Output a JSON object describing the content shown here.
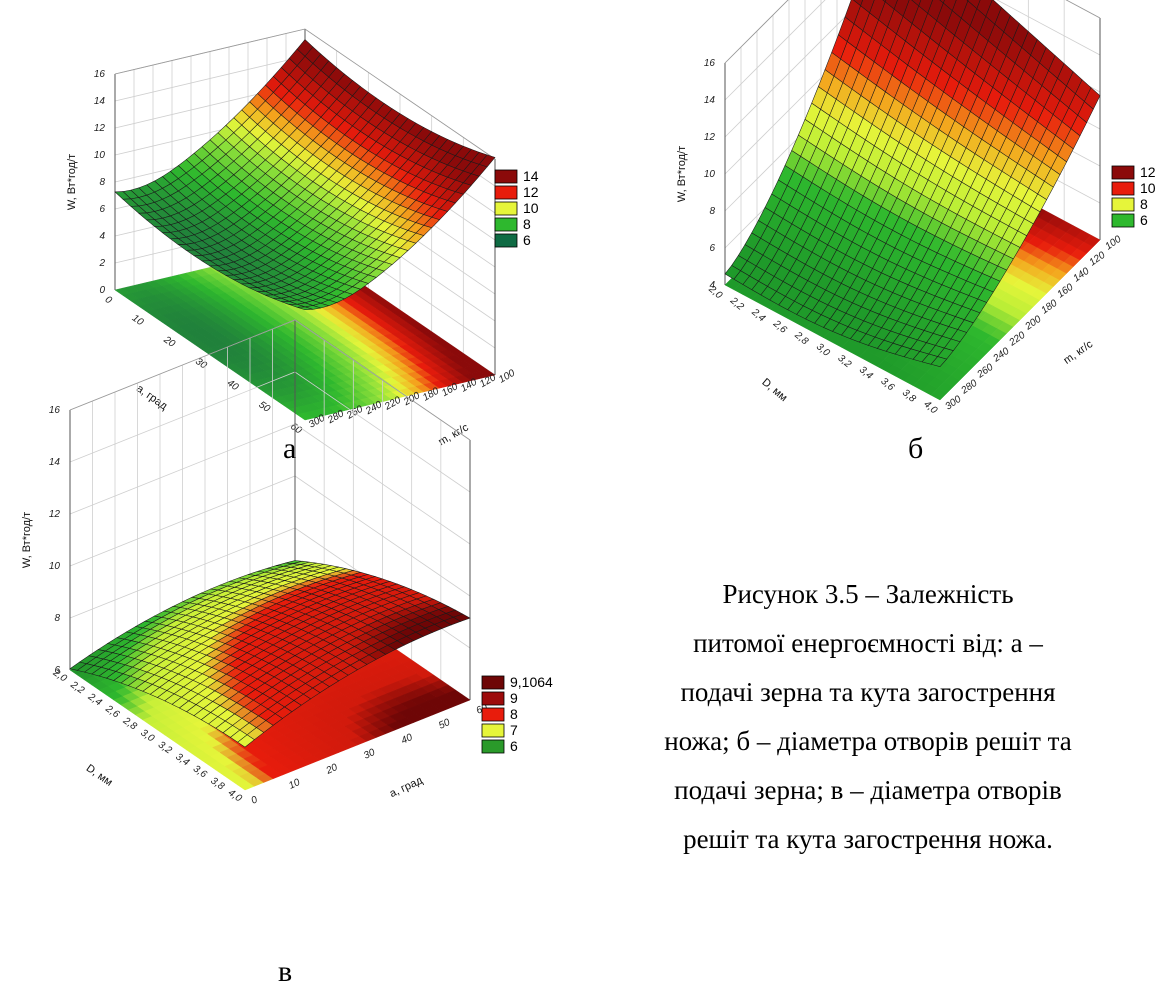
{
  "caption": {
    "line1": "Рисунок 3.5 – Залежність",
    "line2": "питомої енергоємності від: а –",
    "line3": "подачі зерна та кута загострення",
    "line4": "ножа; б – діаметра отворів решіт та",
    "line5": "подачі зерна; в – діаметра отворів",
    "line6": "решіт та кута загострення ножа."
  },
  "chart_data": [
    {
      "type": "surface",
      "panel_label": "а",
      "zlabel": "W, Вт*год/т",
      "xlabel": "a, град",
      "ylabel": "m, кг/с",
      "z_ticks": [
        "0",
        "2",
        "4",
        "6",
        "8",
        "10",
        "12",
        "14",
        "16"
      ],
      "x_ticks": [
        "0",
        "10",
        "20",
        "30",
        "40",
        "50",
        "60"
      ],
      "y_ticks": [
        "100",
        "120",
        "140",
        "160",
        "180",
        "200",
        "220",
        "240",
        "260",
        "280",
        "300"
      ],
      "zlim": [
        0,
        16
      ],
      "surface_corners": {
        "a0_m300": 7.5,
        "a60_m300": 6.8,
        "a0_m100": 14.5,
        "a60_m100": 14.2,
        "min_a25_m270": 5.9
      },
      "legend": [
        {
          "label": "14",
          "color": "#8b0a0a"
        },
        {
          "label": "12",
          "color": "#e81c0c"
        },
        {
          "label": "10",
          "color": "#e6f53a"
        },
        {
          "label": "8",
          "color": "#2eb82e"
        },
        {
          "label": "6",
          "color": "#0f6b44"
        }
      ]
    },
    {
      "type": "surface",
      "panel_label": "б",
      "zlabel": "W, Вт*год/т",
      "xlabel": "D, мм",
      "ylabel": "m, кг/с",
      "z_ticks": [
        "4",
        "6",
        "8",
        "10",
        "12",
        "14",
        "16"
      ],
      "x_ticks": [
        "2,0",
        "2,2",
        "2,4",
        "2,6",
        "2,8",
        "3,0",
        "3,2",
        "3,4",
        "3,6",
        "3,8",
        "4,0"
      ],
      "y_ticks": [
        "100",
        "120",
        "140",
        "160",
        "180",
        "200",
        "220",
        "240",
        "260",
        "280",
        "300"
      ],
      "zlim": [
        4,
        16
      ],
      "surface_corners": {
        "D2_m300": 4.6,
        "D4_m300": 5.8,
        "D2_m100": 16.0,
        "D4_m100": 10.6
      },
      "legend": [
        {
          "label": "12",
          "color": "#8b0a0a"
        },
        {
          "label": "10",
          "color": "#e81c0c"
        },
        {
          "label": "8",
          "color": "#e6f53a"
        },
        {
          "label": "6",
          "color": "#2eb82e"
        }
      ]
    },
    {
      "type": "surface",
      "panel_label": "в",
      "zlabel": "W, Вт*год/т",
      "xlabel": "D, мм",
      "ylabel": "a, град",
      "z_ticks": [
        "6",
        "8",
        "10",
        "12",
        "14",
        "16"
      ],
      "x_ticks": [
        "2,0",
        "2,2",
        "2,4",
        "2,6",
        "2,8",
        "3,0",
        "3,2",
        "3,4",
        "3,6",
        "3,8",
        "4,0"
      ],
      "y_ticks": [
        "0",
        "10",
        "20",
        "30",
        "40",
        "50",
        "60"
      ],
      "zlim": [
        6,
        16
      ],
      "surface_corners": {
        "D2_a0": 6.4,
        "D4_a0": 8.0,
        "D2_a60": 7.3,
        "D4_a60": 9.1
      },
      "legend": [
        {
          "label": "9,1064",
          "color": "#6e0606"
        },
        {
          "label": "9",
          "color": "#9c0b0b"
        },
        {
          "label": "8",
          "color": "#e81c0c"
        },
        {
          "label": "7",
          "color": "#e6f53a"
        },
        {
          "label": "6",
          "color": "#2a9a2a"
        }
      ]
    }
  ]
}
